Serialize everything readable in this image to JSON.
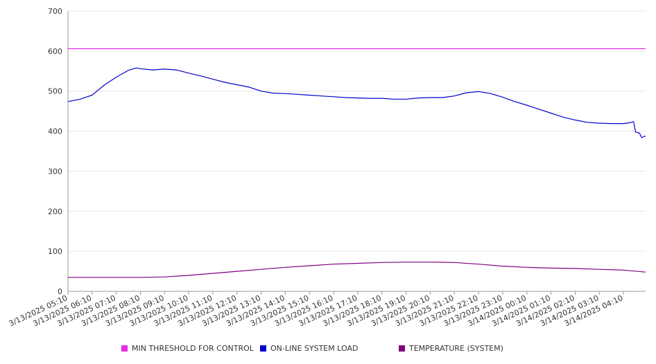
{
  "chart_data": {
    "type": "line",
    "title": "",
    "xlabel": "",
    "ylabel": "",
    "ylim": [
      0,
      700
    ],
    "yticks": [
      0,
      100,
      200,
      300,
      400,
      500,
      600,
      700
    ],
    "grid": true,
    "legend_position": "bottom",
    "categories": [
      "3/13/2025 05:10",
      "3/13/2025 06:10",
      "3/13/2025 07:10",
      "3/13/2025 08:10",
      "3/13/2025 09:10",
      "3/13/2025 10:10",
      "3/13/2025 11:10",
      "3/13/2025 12:10",
      "3/13/2025 13:10",
      "3/13/2025 14:10",
      "3/13/2025 15:10",
      "3/13/2025 16:10",
      "3/13/2025 17:10",
      "3/13/2025 18:10",
      "3/13/2025 19:10",
      "3/13/2025 20:10",
      "3/13/2025 21:10",
      "3/13/2025 22:10",
      "3/13/2025 23:10",
      "3/14/2025 00:10",
      "3/14/2025 01:10",
      "3/14/2025 02:10",
      "3/14/2025 03:10",
      "3/14/2025 04:10"
    ],
    "x_end": "3/14/2025 05:05",
    "series": [
      {
        "name": "MIN THRESHOLD FOR CONTROL",
        "color": "#e62de6",
        "points": [
          [
            "3/13/2025 05:10",
            606
          ],
          [
            "3/14/2025 05:05",
            606
          ]
        ]
      },
      {
        "name": "ON-LINE SYSTEM LOAD",
        "color": "#0000cc",
        "points": [
          [
            "3/13/2025 05:10",
            474
          ],
          [
            "3/13/2025 05:40",
            480
          ],
          [
            "3/13/2025 06:10",
            490
          ],
          [
            "3/13/2025 06:40",
            515
          ],
          [
            "3/13/2025 07:10",
            535
          ],
          [
            "3/13/2025 07:40",
            552
          ],
          [
            "3/13/2025 08:00",
            558
          ],
          [
            "3/13/2025 08:10",
            556
          ],
          [
            "3/13/2025 08:40",
            553
          ],
          [
            "3/13/2025 09:10",
            555
          ],
          [
            "3/13/2025 09:40",
            553
          ],
          [
            "3/13/2025 10:10",
            545
          ],
          [
            "3/13/2025 10:40",
            538
          ],
          [
            "3/13/2025 11:10",
            530
          ],
          [
            "3/13/2025 11:40",
            522
          ],
          [
            "3/13/2025 12:10",
            516
          ],
          [
            "3/13/2025 12:40",
            510
          ],
          [
            "3/13/2025 13:10",
            500
          ],
          [
            "3/13/2025 13:40",
            495
          ],
          [
            "3/13/2025 14:10",
            494
          ],
          [
            "3/13/2025 14:40",
            492
          ],
          [
            "3/13/2025 15:10",
            490
          ],
          [
            "3/13/2025 15:40",
            488
          ],
          [
            "3/13/2025 16:10",
            486
          ],
          [
            "3/13/2025 16:40",
            484
          ],
          [
            "3/13/2025 17:10",
            483
          ],
          [
            "3/13/2025 17:40",
            482
          ],
          [
            "3/13/2025 18:10",
            482
          ],
          [
            "3/13/2025 18:40",
            480
          ],
          [
            "3/13/2025 19:10",
            480
          ],
          [
            "3/13/2025 19:40",
            483
          ],
          [
            "3/13/2025 20:10",
            484
          ],
          [
            "3/13/2025 20:40",
            484
          ],
          [
            "3/13/2025 21:10",
            488
          ],
          [
            "3/13/2025 21:40",
            496
          ],
          [
            "3/13/2025 22:10",
            499
          ],
          [
            "3/13/2025 22:40",
            494
          ],
          [
            "3/13/2025 23:10",
            485
          ],
          [
            "3/13/2025 23:40",
            474
          ],
          [
            "3/14/2025 00:10",
            465
          ],
          [
            "3/14/2025 00:40",
            455
          ],
          [
            "3/14/2025 01:10",
            445
          ],
          [
            "3/14/2025 01:40",
            435
          ],
          [
            "3/14/2025 02:10",
            428
          ],
          [
            "3/14/2025 02:40",
            422
          ],
          [
            "3/14/2025 03:10",
            420
          ],
          [
            "3/14/2025 03:40",
            419
          ],
          [
            "3/14/2025 04:10",
            419
          ],
          [
            "3/14/2025 04:25",
            421
          ],
          [
            "3/14/2025 04:35",
            424
          ],
          [
            "3/14/2025 04:40",
            398
          ],
          [
            "3/14/2025 04:50",
            395
          ],
          [
            "3/14/2025 04:55",
            384
          ],
          [
            "3/14/2025 05:05",
            388
          ]
        ]
      },
      {
        "name": "TEMPERATURE (SYSTEM)",
        "color": "#800080",
        "points": [
          [
            "3/13/2025 05:10",
            35
          ],
          [
            "3/13/2025 06:10",
            35
          ],
          [
            "3/13/2025 07:10",
            35
          ],
          [
            "3/13/2025 08:10",
            35
          ],
          [
            "3/13/2025 09:10",
            36
          ],
          [
            "3/13/2025 10:10",
            40
          ],
          [
            "3/13/2025 11:10",
            45
          ],
          [
            "3/13/2025 12:10",
            50
          ],
          [
            "3/13/2025 13:10",
            55
          ],
          [
            "3/13/2025 14:10",
            60
          ],
          [
            "3/13/2025 15:10",
            64
          ],
          [
            "3/13/2025 16:10",
            68
          ],
          [
            "3/13/2025 17:10",
            70
          ],
          [
            "3/13/2025 18:10",
            72
          ],
          [
            "3/13/2025 19:10",
            73
          ],
          [
            "3/13/2025 20:10",
            73
          ],
          [
            "3/13/2025 21:10",
            72
          ],
          [
            "3/13/2025 22:10",
            68
          ],
          [
            "3/13/2025 23:10",
            63
          ],
          [
            "3/14/2025 00:10",
            60
          ],
          [
            "3/14/2025 01:10",
            58
          ],
          [
            "3/14/2025 02:10",
            57
          ],
          [
            "3/14/2025 03:10",
            55
          ],
          [
            "3/14/2025 04:10",
            53
          ],
          [
            "3/14/2025 05:05",
            48
          ]
        ]
      }
    ]
  },
  "legend": [
    {
      "label": "MIN THRESHOLD FOR CONTROL",
      "color": "#e62de6"
    },
    {
      "label": "ON-LINE SYSTEM LOAD",
      "color": "#0000cc"
    },
    {
      "label": "TEMPERATURE (SYSTEM)",
      "color": "#800080"
    }
  ],
  "colors": {
    "grid": "#e6e6e6",
    "axis": "#999999",
    "text": "#333333"
  }
}
